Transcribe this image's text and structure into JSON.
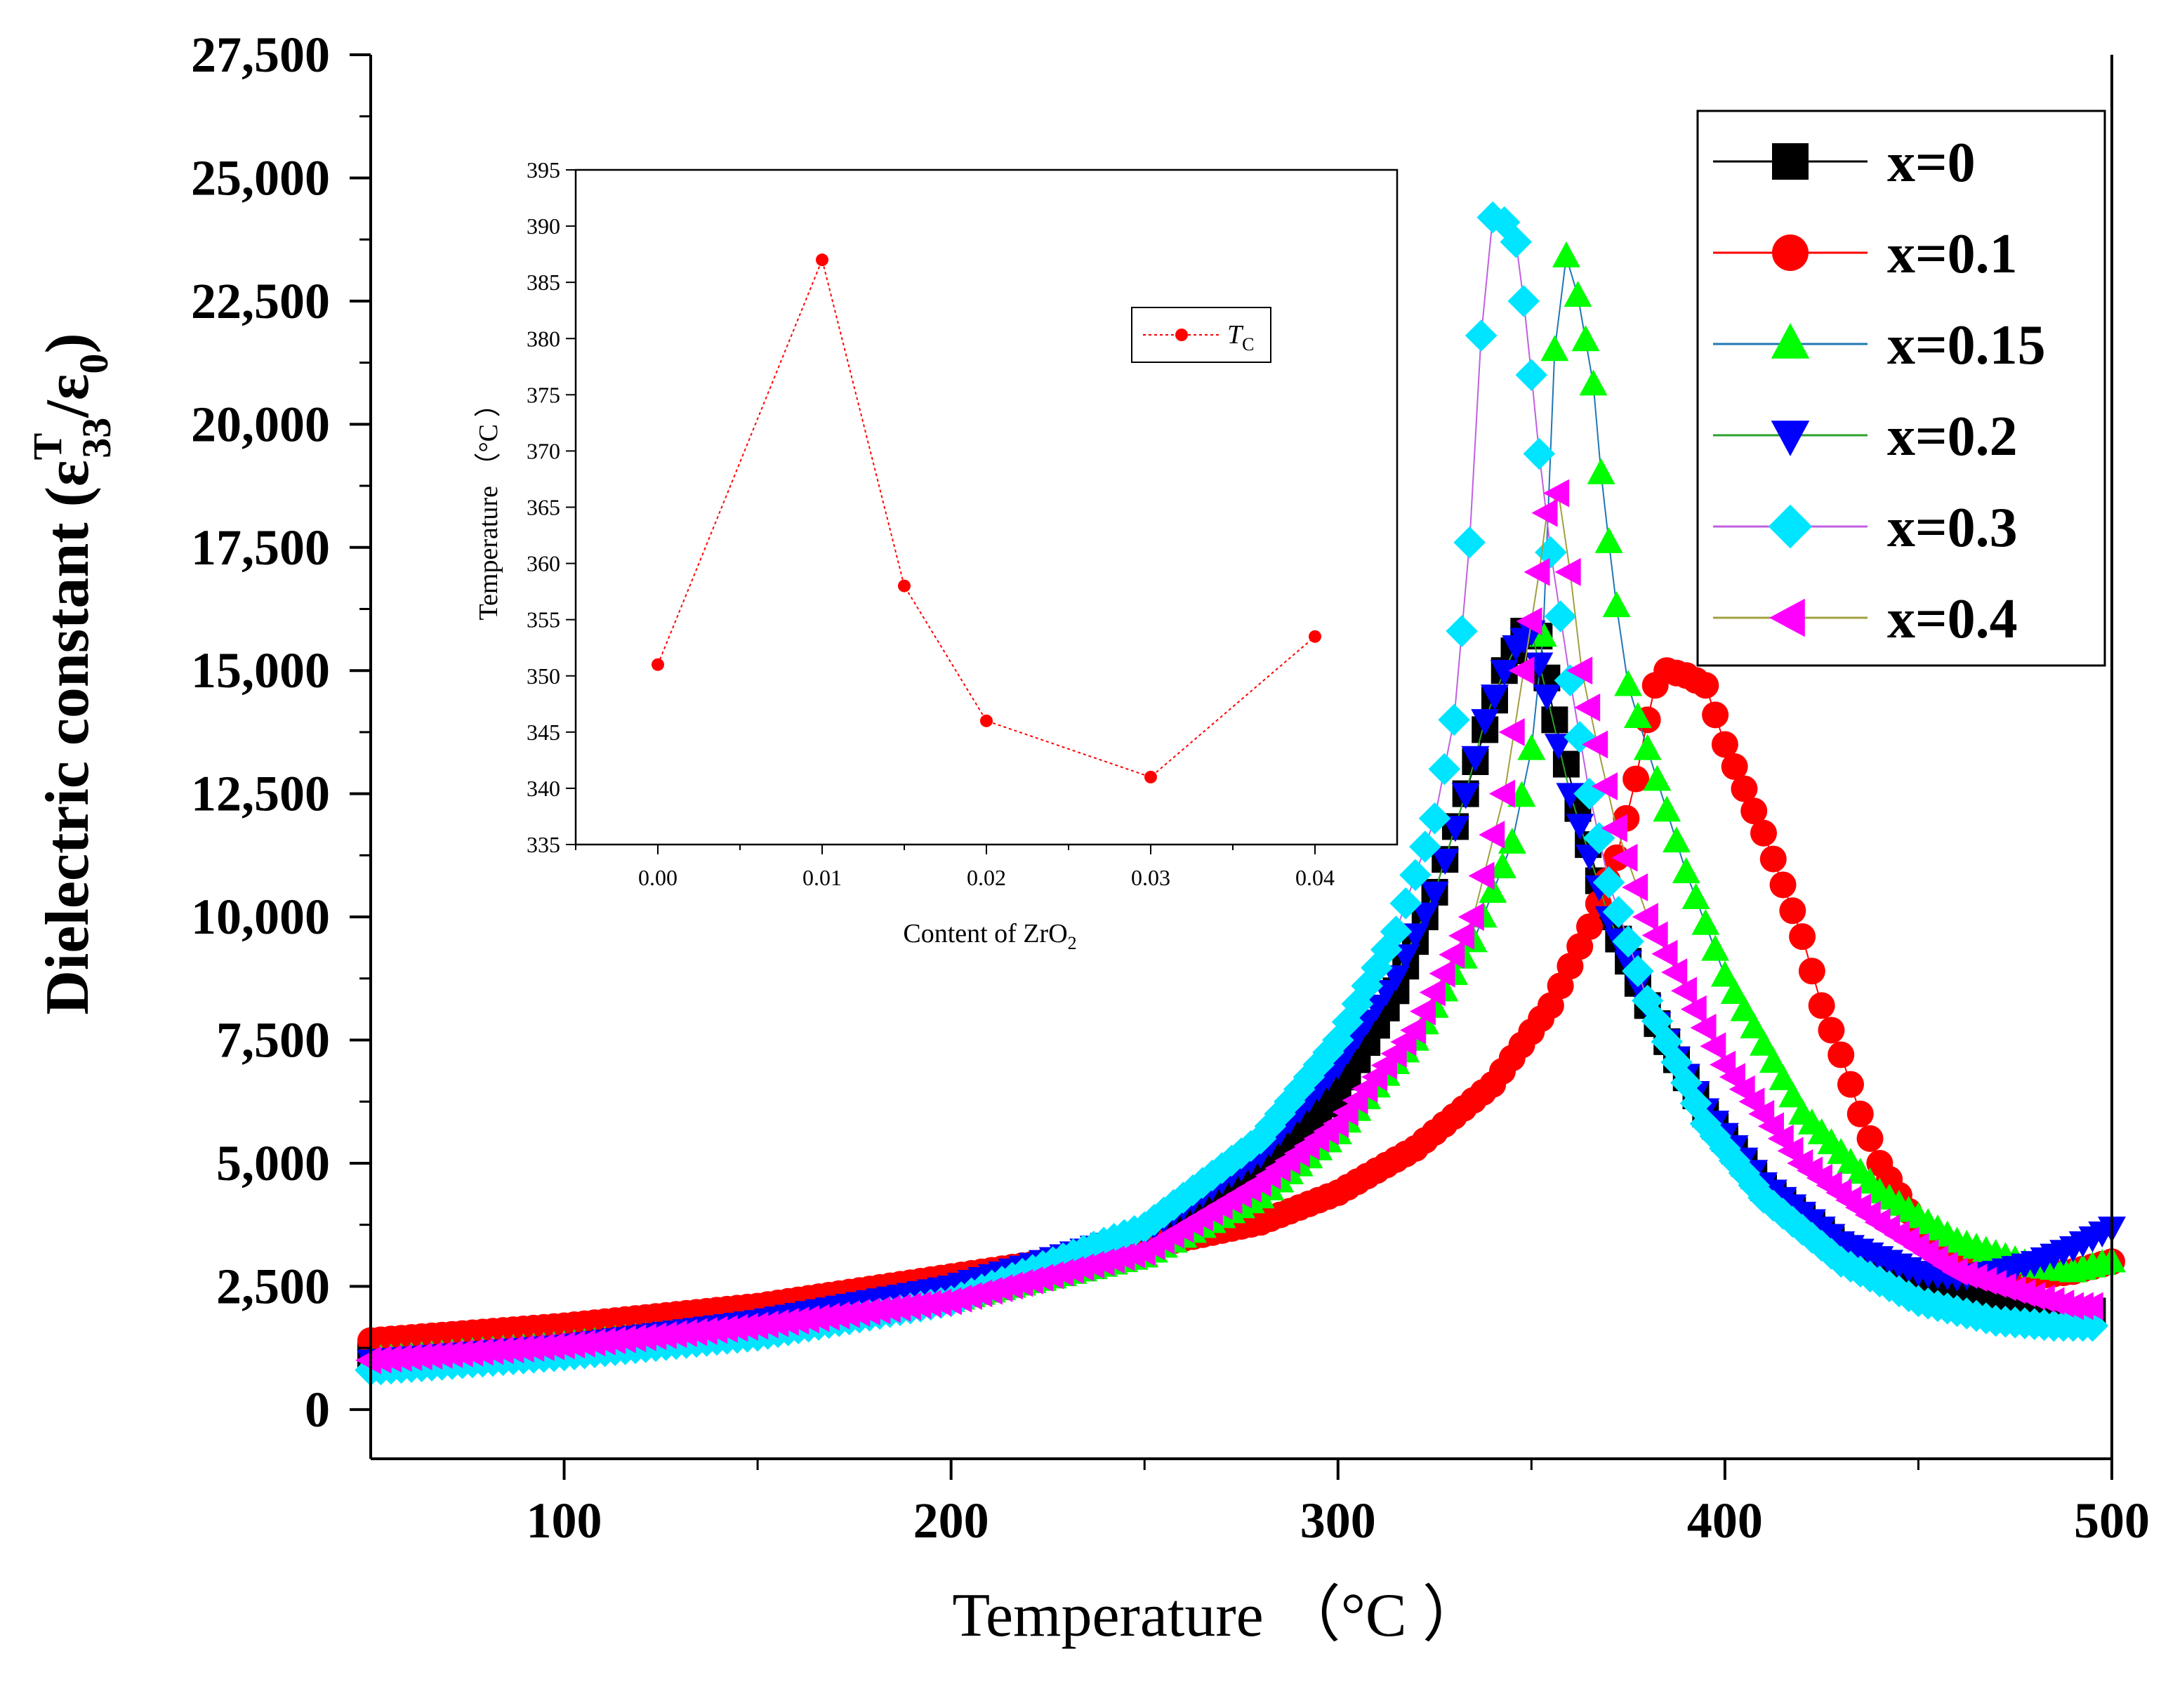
{
  "chart_data": [
    {
      "type": "scatter",
      "title": "",
      "xlabel": "Temperature （°C ）",
      "ylabel": {
        "prefix": "Dielectric constant (",
        "epsilon": "ε",
        "superscript": "T",
        "subscript_num": "33",
        "slash": "/",
        "epsilon2": "ε",
        "subscript_den": "0",
        "suffix": ")"
      },
      "xlim": [
        50,
        500
      ],
      "ylim": [
        -1000,
        27500
      ],
      "xticks": [
        100,
        200,
        300,
        400,
        500
      ],
      "xtick_labels": [
        "100",
        "200",
        "300",
        "400",
        "500"
      ],
      "yticks": [
        0,
        2500,
        5000,
        7500,
        10000,
        12500,
        15000,
        17500,
        20000,
        22500,
        25000,
        27500
      ],
      "ytick_labels": [
        "0",
        "2,500",
        "5,000",
        "7,500",
        "10,000",
        "12,500",
        "15,000",
        "17,500",
        "20,000",
        "22,500",
        "25,000",
        "27,500"
      ],
      "grid": false,
      "legend_position": "top-right",
      "series": [
        {
          "name": "x=0",
          "color": "#000000",
          "line_color": "#000000",
          "marker": "square",
          "points": [
            [
              50,
              1100
            ],
            [
              100,
              1400
            ],
            [
              150,
              1800
            ],
            [
              200,
              2400
            ],
            [
              250,
              3400
            ],
            [
              280,
              4800
            ],
            [
              300,
              6400
            ],
            [
              315,
              8500
            ],
            [
              325,
              10500
            ],
            [
              333,
              12500
            ],
            [
              338,
              13800
            ],
            [
              343,
              15000
            ],
            [
              348,
              15800
            ],
            [
              352,
              15700
            ],
            [
              356,
              14000
            ],
            [
              362,
              12200
            ],
            [
              370,
              10000
            ],
            [
              380,
              8200
            ],
            [
              395,
              6000
            ],
            [
              410,
              4500
            ],
            [
              430,
              3300
            ],
            [
              450,
              2500
            ],
            [
              470,
              2100
            ],
            [
              480,
              2000
            ],
            [
              490,
              2000
            ],
            [
              495,
              2000
            ]
          ]
        },
        {
          "name": "x=0.1",
          "color": "#ff0000",
          "line_color": "#ff0000",
          "marker": "circle",
          "points": [
            [
              50,
              1400
            ],
            [
              100,
              1700
            ],
            [
              150,
              2100
            ],
            [
              200,
              2700
            ],
            [
              250,
              3300
            ],
            [
              280,
              3800
            ],
            [
              300,
              4400
            ],
            [
              320,
              5300
            ],
            [
              340,
              6600
            ],
            [
              355,
              8200
            ],
            [
              365,
              9800
            ],
            [
              372,
              11200
            ],
            [
              377,
              12800
            ],
            [
              380,
              14000
            ],
            [
              382,
              14700
            ],
            [
              385,
              15000
            ],
            [
              390,
              14900
            ],
            [
              395,
              14700
            ],
            [
              400,
              13500
            ],
            [
              410,
              11700
            ],
            [
              420,
              9600
            ],
            [
              425,
              8200
            ],
            [
              430,
              7200
            ],
            [
              435,
              6000
            ],
            [
              440,
              5000
            ],
            [
              450,
              3700
            ],
            [
              460,
              3100
            ],
            [
              470,
              2800
            ],
            [
              480,
              2700
            ],
            [
              490,
              2800
            ],
            [
              500,
              3000
            ]
          ]
        },
        {
          "name": "x=0.15",
          "color": "#00ff00",
          "line_color": "#1f77b4",
          "marker": "triangle-up",
          "points": [
            [
              50,
              1000
            ],
            [
              100,
              1300
            ],
            [
              150,
              1700
            ],
            [
              200,
              2200
            ],
            [
              250,
              3100
            ],
            [
              280,
              4300
            ],
            [
              300,
              5600
            ],
            [
              320,
              7500
            ],
            [
              335,
              9500
            ],
            [
              345,
              11500
            ],
            [
              350,
              13400
            ],
            [
              353,
              15700
            ],
            [
              356,
              21500
            ],
            [
              359,
              23400
            ],
            [
              362,
              22600
            ],
            [
              366,
              20800
            ],
            [
              368,
              19000
            ],
            [
              370,
              17600
            ],
            [
              372,
              16300
            ],
            [
              375,
              14700
            ],
            [
              380,
              13400
            ],
            [
              390,
              10900
            ],
            [
              400,
              8800
            ],
            [
              420,
              6000
            ],
            [
              440,
              4400
            ],
            [
              460,
              3400
            ],
            [
              480,
              2900
            ],
            [
              490,
              2800
            ],
            [
              500,
              3000
            ]
          ]
        },
        {
          "name": "x=0.2",
          "color": "#0000ff",
          "line_color": "#2ca02c",
          "marker": "triangle-down",
          "points": [
            [
              50,
              1000
            ],
            [
              100,
              1300
            ],
            [
              150,
              1800
            ],
            [
              200,
              2500
            ],
            [
              250,
              3600
            ],
            [
              280,
              5200
            ],
            [
              300,
              7000
            ],
            [
              315,
              8800
            ],
            [
              325,
              10500
            ],
            [
              333,
              12500
            ],
            [
              338,
              14000
            ],
            [
              343,
              15000
            ],
            [
              346,
              15500
            ],
            [
              350,
              15800
            ],
            [
              354,
              14500
            ],
            [
              360,
              12500
            ],
            [
              370,
              10000
            ],
            [
              380,
              8200
            ],
            [
              395,
              6100
            ],
            [
              410,
              4600
            ],
            [
              430,
              3400
            ],
            [
              450,
              2800
            ],
            [
              460,
              2700
            ],
            [
              470,
              2800
            ],
            [
              480,
              3000
            ],
            [
              490,
              3300
            ],
            [
              495,
              3500
            ],
            [
              500,
              3700
            ]
          ]
        },
        {
          "name": "x=0.3",
          "color": "#00e5ff",
          "line_color": "#c060e0",
          "marker": "diamond",
          "points": [
            [
              50,
              800
            ],
            [
              100,
              1100
            ],
            [
              150,
              1500
            ],
            [
              200,
              2200
            ],
            [
              250,
              3700
            ],
            [
              280,
              5500
            ],
            [
              300,
              7500
            ],
            [
              315,
              9700
            ],
            [
              325,
              12000
            ],
            [
              330,
              14000
            ],
            [
              334,
              17600
            ],
            [
              337,
              21800
            ],
            [
              340,
              24200
            ],
            [
              343,
              24100
            ],
            [
              346,
              23700
            ],
            [
              348,
              22500
            ],
            [
              350,
              21000
            ],
            [
              352,
              19400
            ],
            [
              355,
              17400
            ],
            [
              360,
              14800
            ],
            [
              365,
              12500
            ],
            [
              370,
              10700
            ],
            [
              380,
              8300
            ],
            [
              395,
              5800
            ],
            [
              410,
              4300
            ],
            [
              430,
              3000
            ],
            [
              450,
              2200
            ],
            [
              470,
              1800
            ],
            [
              485,
              1700
            ],
            [
              495,
              1700
            ]
          ]
        },
        {
          "name": "x=0.4",
          "color": "#ff00ff",
          "line_color": "#a0a040",
          "marker": "triangle-left",
          "points": [
            [
              50,
              1000
            ],
            [
              100,
              1300
            ],
            [
              150,
              1700
            ],
            [
              200,
              2200
            ],
            [
              250,
              3200
            ],
            [
              280,
              4600
            ],
            [
              300,
              5800
            ],
            [
              320,
              7700
            ],
            [
              335,
              10000
            ],
            [
              343,
              12500
            ],
            [
              348,
              15000
            ],
            [
              352,
              17000
            ],
            [
              354,
              18200
            ],
            [
              357,
              18600
            ],
            [
              360,
              17000
            ],
            [
              363,
              15000
            ],
            [
              367,
              13500
            ],
            [
              372,
              11800
            ],
            [
              380,
              10000
            ],
            [
              390,
              8500
            ],
            [
              400,
              7000
            ],
            [
              420,
              5000
            ],
            [
              440,
              3800
            ],
            [
              460,
              2800
            ],
            [
              480,
              2300
            ],
            [
              490,
              2100
            ],
            [
              495,
              2100
            ]
          ]
        }
      ]
    },
    {
      "type": "line",
      "title": "",
      "xlabel": {
        "text": "Content of ZrO",
        "subscript": "2"
      },
      "ylabel": "Temperature （°C ）",
      "xlim": [
        -0.005,
        0.045
      ],
      "ylim": [
        335,
        395
      ],
      "xticks": [
        0.0,
        0.01,
        0.02,
        0.03,
        0.04
      ],
      "xtick_labels": [
        "0.00",
        "0.01",
        "0.02",
        "0.03",
        "0.04"
      ],
      "yticks": [
        335,
        340,
        345,
        350,
        355,
        360,
        365,
        370,
        375,
        380,
        385,
        390,
        395
      ],
      "ytick_labels": [
        "335",
        "340",
        "345",
        "350",
        "355",
        "360",
        "365",
        "370",
        "375",
        "380",
        "385",
        "390",
        "395"
      ],
      "grid": false,
      "legend_position": "top-right",
      "series": [
        {
          "name": "T",
          "name_subscript": "C",
          "color": "#ff0000",
          "x": [
            0.0,
            0.01,
            0.015,
            0.02,
            0.03,
            0.04
          ],
          "values": [
            351,
            387,
            358,
            346,
            341,
            353.5
          ]
        }
      ]
    }
  ]
}
